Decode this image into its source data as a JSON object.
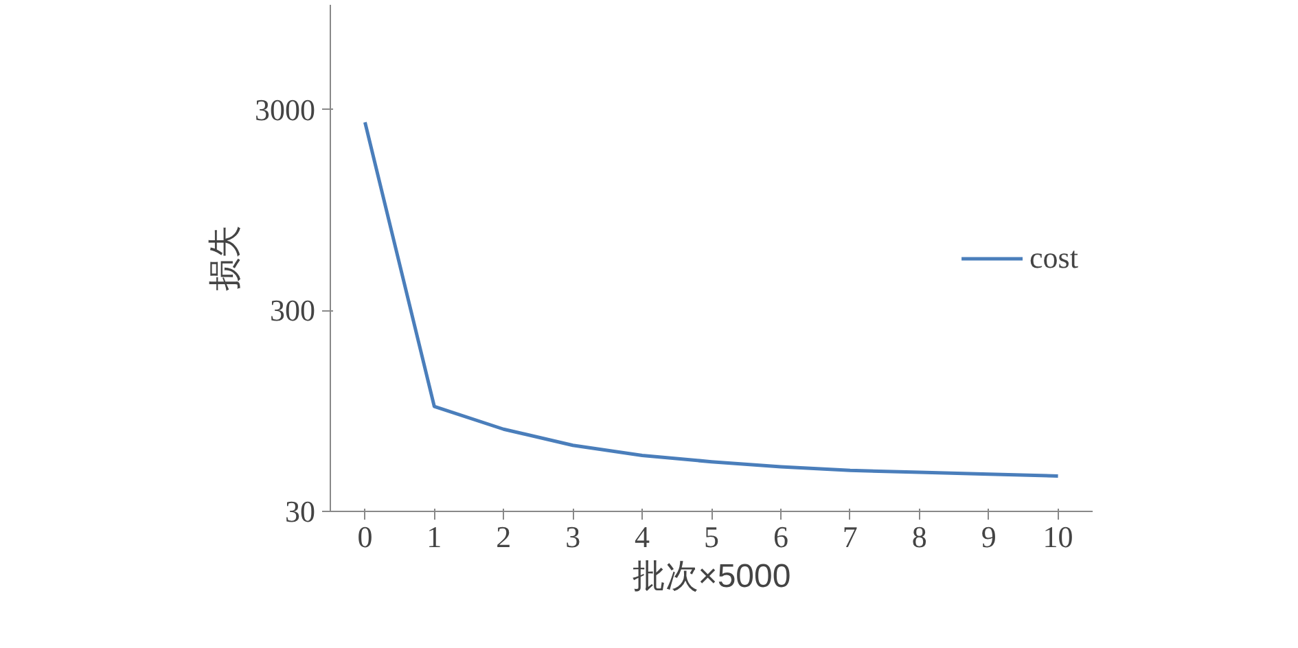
{
  "chart_data": {
    "type": "line",
    "xlabel": "批次×5000",
    "ylabel": "损失",
    "categories": [
      "0",
      "1",
      "2",
      "3",
      "4",
      "5",
      "6",
      "7",
      "8",
      "9",
      "10"
    ],
    "series": [
      {
        "name": "cost",
        "color": "#4a7ebb",
        "values": [
          2600,
          100,
          77,
          64,
          57,
          53,
          50,
          48,
          47,
          46,
          45
        ]
      }
    ],
    "log": true,
    "ylim": [
      30,
      10000
    ],
    "yticks": [
      30,
      300,
      3000
    ],
    "grid": false,
    "legend": "right",
    "marker": "none",
    "line_style": "solid"
  }
}
